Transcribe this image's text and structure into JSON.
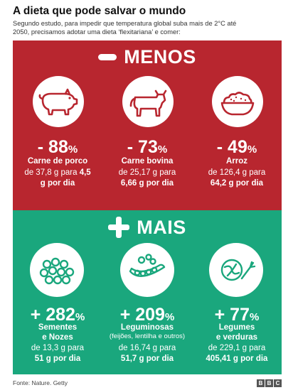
{
  "header": {
    "title": "A dieta que pode salvar o mundo",
    "subtitle_line1": "Segundo estudo, para impedir que temperatura global suba mais de 2°C até",
    "subtitle_line2": "2050, precisamos adotar uma dieta ‘flexitariana’ e comer:"
  },
  "menos": {
    "title": "MENOS",
    "color": "#b8262f",
    "items": [
      {
        "icon": "pig-icon",
        "percent": "- 88",
        "percent_sym": "%",
        "name": "Carne de porco",
        "detail_line1": "de 37,8 g para",
        "detail_bold1": "4,5",
        "detail_line2": "g por dia"
      },
      {
        "icon": "cow-icon",
        "percent": "- 73",
        "percent_sym": "%",
        "name": "Carne bovina",
        "detail_line1": "de 25,17 g para",
        "detail_line2": "6,66 g por dia"
      },
      {
        "icon": "rice-bowl-icon",
        "percent": "- 49",
        "percent_sym": "%",
        "name": "Arroz",
        "detail_line1": "de 126,4 g para",
        "detail_line2": "64,2 g por dia"
      }
    ]
  },
  "mais": {
    "title": "MAIS",
    "color": "#1aa77d",
    "items": [
      {
        "icon": "seeds-icon",
        "percent": "+ 282",
        "percent_sym": "%",
        "name_line1": "Sementes",
        "name_line2": "e Nozes",
        "detail_line1": "de 13,3 g para",
        "detail_line2": "51 g por dia"
      },
      {
        "icon": "pea-pod-icon",
        "percent": "+ 209",
        "percent_sym": "%",
        "name_line1": "Leguminosas",
        "name_sub": "(feijões, lentilha e outros)",
        "detail_line1": "de 16,74 g para",
        "detail_line2": "51,7 g por dia"
      },
      {
        "icon": "vegetables-icon",
        "percent": "+ 77",
        "percent_sym": "%",
        "name_line1": "Legumes",
        "name_line2": "e verduras",
        "detail_line1": "de 229,1 g para",
        "detail_line2": "405,41 g por dia"
      }
    ]
  },
  "footer": {
    "source": "Fonte: Nature. Getty",
    "logo": [
      "B",
      "B",
      "C"
    ]
  }
}
